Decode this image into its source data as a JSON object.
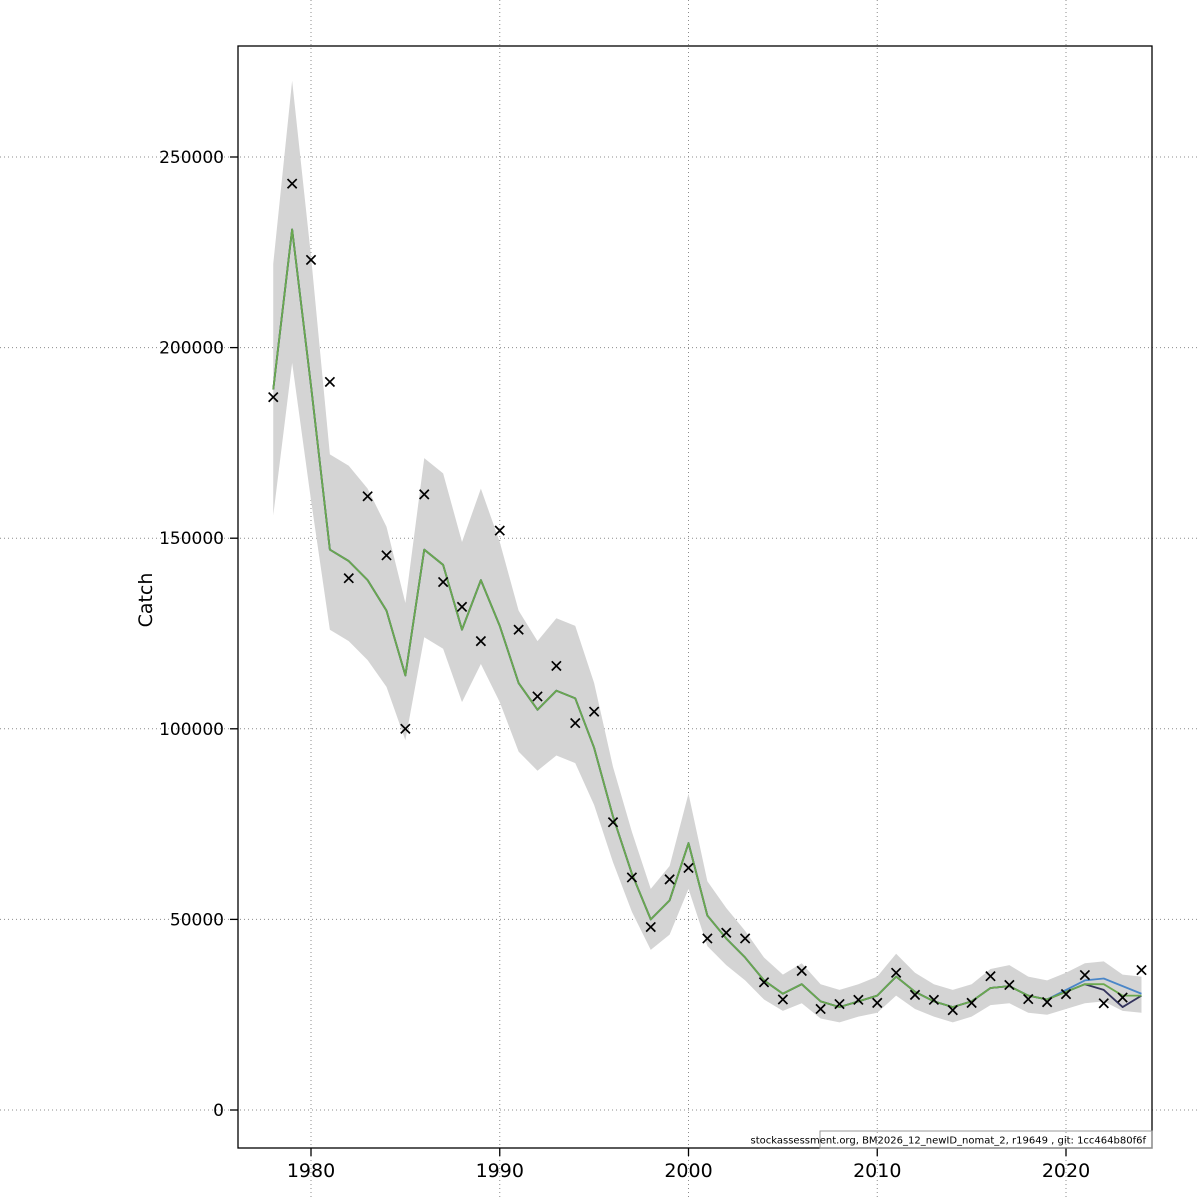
{
  "figure": {
    "ylabel": "Catch",
    "footer": "stockassessment.org, BM2026_12_newID_nomat_2, r19649 , git: 1cc464b80f6f"
  },
  "chart_data": {
    "type": "line",
    "title": "",
    "xlabel": "",
    "ylabel": "Catch",
    "legend": "none",
    "grid": true,
    "grid_color": "#8c8c8c",
    "xlim": [
      1976.1,
      2024.6
    ],
    "ylim": [
      -10000,
      279000
    ],
    "xticks": [
      1980,
      1990,
      2000,
      2010,
      2020
    ],
    "yticks": [
      0,
      50000,
      100000,
      150000,
      200000,
      250000
    ],
    "x": [
      1978,
      1979,
      1980,
      1981,
      1982,
      1983,
      1984,
      1985,
      1986,
      1987,
      1988,
      1989,
      1990,
      1991,
      1992,
      1993,
      1994,
      1995,
      1996,
      1997,
      1998,
      1999,
      2000,
      2001,
      2002,
      2003,
      2004,
      2005,
      2006,
      2007,
      2008,
      2009,
      2010,
      2011,
      2012,
      2013,
      2014,
      2015,
      2016,
      2017,
      2018,
      2019,
      2020,
      2021,
      2022,
      2023,
      2024
    ],
    "band": {
      "color": "#d4d4d4",
      "lower": [
        156000,
        196000,
        160000,
        126000,
        123000,
        118000,
        111000,
        97000,
        124000,
        121000,
        107000,
        117000,
        107000,
        94000,
        89000,
        93000,
        91000,
        80000,
        65000,
        52000,
        42000,
        46000,
        58000,
        43000,
        38000,
        34000,
        29000,
        26000,
        28000,
        24000,
        23000,
        24500,
        25500,
        30000,
        26500,
        24500,
        23000,
        24500,
        27500,
        28000,
        25500,
        25000,
        26500,
        28000,
        28500,
        26000,
        25500
      ],
      "upper": [
        222000,
        270000,
        224000,
        172000,
        169000,
        163000,
        153000,
        133000,
        171000,
        167000,
        149000,
        163000,
        149000,
        131000,
        123000,
        129000,
        127000,
        112000,
        90000,
        73000,
        58000,
        64000,
        83000,
        60000,
        53000,
        47000,
        40000,
        35500,
        38500,
        33000,
        31500,
        33000,
        35000,
        41000,
        36000,
        33000,
        31500,
        33000,
        37000,
        38000,
        35000,
        34000,
        36000,
        38500,
        39000,
        35500,
        35000
      ]
    },
    "series": [
      {
        "name": "fit-blue",
        "color": "#4a86c8",
        "values": [
          189000,
          231000,
          190000,
          147000,
          144000,
          139000,
          131000,
          114000,
          147000,
          143000,
          126000,
          139000,
          127000,
          112000,
          105000,
          110000,
          108000,
          95000,
          77000,
          62000,
          50000,
          55000,
          70000,
          51000,
          45000,
          40000,
          34000,
          30500,
          33000,
          28500,
          27000,
          28500,
          30000,
          35000,
          31000,
          28500,
          27000,
          28500,
          32000,
          32500,
          30000,
          29000,
          31500,
          34000,
          34500,
          32500,
          30500
        ]
      },
      {
        "name": "fit-dark",
        "color": "#33335c",
        "values": [
          189000,
          231000,
          190000,
          147000,
          144000,
          139000,
          131000,
          114000,
          147000,
          143000,
          126000,
          139000,
          127000,
          112000,
          105000,
          110000,
          108000,
          95000,
          77000,
          62000,
          50000,
          55000,
          70000,
          51000,
          45000,
          40000,
          34000,
          30500,
          33000,
          28500,
          27000,
          28500,
          30000,
          35000,
          31000,
          28500,
          27000,
          28500,
          32000,
          32500,
          30000,
          29000,
          31000,
          33000,
          31500,
          27000,
          30000
        ]
      },
      {
        "name": "fit-green",
        "color": "#6aa84f",
        "values": [
          189000,
          231000,
          190000,
          147000,
          144000,
          139000,
          131000,
          114000,
          147000,
          143000,
          126000,
          139000,
          127000,
          112000,
          105000,
          110000,
          108000,
          95000,
          77000,
          62000,
          50000,
          55000,
          70000,
          51000,
          45000,
          40000,
          34000,
          30500,
          33000,
          28500,
          27000,
          28500,
          30000,
          35000,
          31000,
          28500,
          27000,
          28500,
          32000,
          32500,
          30000,
          29000,
          31000,
          33000,
          33000,
          30000,
          30000
        ]
      }
    ],
    "observed": {
      "name": "observed-catch",
      "marker": "x",
      "color": "#000000",
      "values": [
        187000,
        243000,
        223000,
        191000,
        139500,
        161000,
        145500,
        100000,
        161500,
        138500,
        132000,
        123000,
        152000,
        126000,
        108500,
        116500,
        101500,
        104500,
        75500,
        61000,
        48000,
        60500,
        63500,
        45000,
        46500,
        45000,
        33500,
        29000,
        36500,
        26500,
        27800,
        28900,
        28100,
        36000,
        30200,
        28900,
        26200,
        28100,
        35100,
        32800,
        29100,
        28300,
        30400,
        35400,
        28000,
        29500,
        36700
      ]
    }
  }
}
